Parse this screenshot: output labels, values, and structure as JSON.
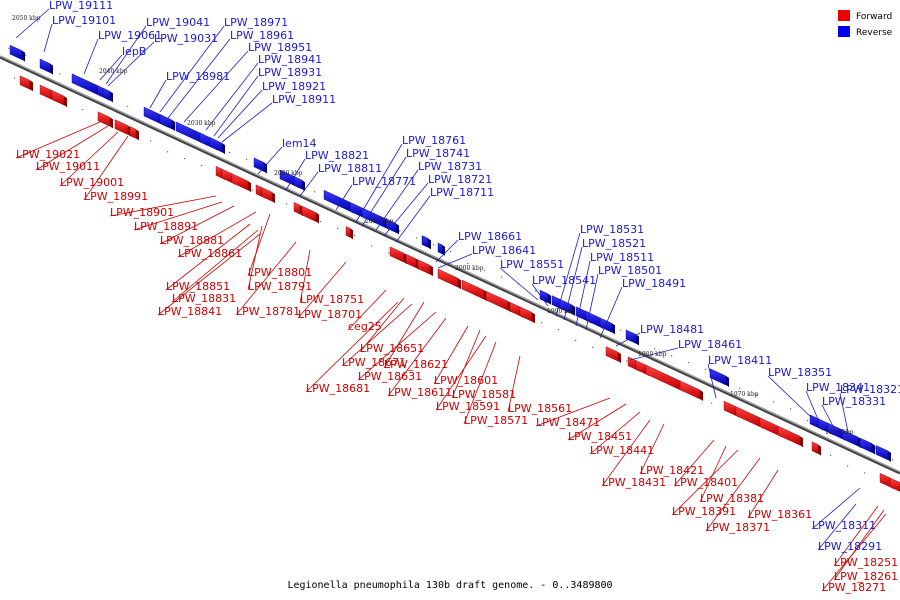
{
  "caption": "Legionella pneumophila 130b draft genome. - 0..3489800",
  "legend": {
    "placement": "top-right",
    "items": [
      {
        "label": "Forward",
        "color": "#ee0000"
      },
      {
        "label": "Reverse",
        "color": "#0000ee"
      }
    ]
  },
  "colors": {
    "forward": "#ee0000",
    "reverse": "#0000ee",
    "forward_line": "#cc0000",
    "reverse_line": "#1a1acc",
    "axis": "#666666"
  },
  "ticks": [
    "2050 kbp",
    "2040 kbp",
    "2030 kbp",
    "2020 kbp",
    "2010 kbp",
    "2000 kbp",
    "1990 kbp",
    "1980 kbp",
    "1970 kbp",
    "1960 kbp"
  ],
  "genes_reverse": [
    "LPW_19111",
    "LPW_19101",
    "LPW_19061",
    "lepB",
    "LPW_19041",
    "LPW_19031",
    "LPW_18971",
    "LPW_18961",
    "LPW_18951",
    "LPW_18941",
    "LPW_18931",
    "LPW_18921",
    "LPW_18911",
    "LPW_18981",
    "lem14",
    "LPW_18821",
    "LPW_18811",
    "LPW_18771",
    "LPW_18761",
    "LPW_18741",
    "LPW_18731",
    "LPW_18721",
    "LPW_18711",
    "LPW_18661",
    "LPW_18641",
    "LPW_18551",
    "LPW_18541",
    "LPW_18531",
    "LPW_18521",
    "LPW_18511",
    "LPW_18501",
    "LPW_18491",
    "LPW_18481",
    "LPW_18461",
    "LPW_18411",
    "LPW_18351",
    "LPW_18341",
    "LPW_18331",
    "LPW_18321",
    "LPW_18311",
    "LPW_18291"
  ],
  "genes_forward": [
    "LPW_19021",
    "LPW_19011",
    "LPW_19001",
    "LPW_18991",
    "LPW_18901",
    "LPW_18891",
    "LPW_18881",
    "LPW_18861",
    "LPW_18801",
    "LPW_18851",
    "LPW_18791",
    "LPW_18831",
    "LPW_18841",
    "LPW_18781",
    "LPW_18751",
    "LPW_18701",
    "ceg25",
    "LPW_18651",
    "LPW_18671",
    "LPW_18621",
    "LPW_18631",
    "LPW_18681",
    "LPW_18611",
    "LPW_18601",
    "LPW_18581",
    "LPW_18591",
    "LPW_18571",
    "LPW_18561",
    "LPW_18471",
    "LPW_18451",
    "LPW_18441",
    "LPW_18431",
    "LPW_18421",
    "LPW_18401",
    "LPW_18381",
    "LPW_18391",
    "LPW_18371",
    "LPW_18361",
    "LPW_18251",
    "LPW_18261",
    "LPW_18271"
  ]
}
